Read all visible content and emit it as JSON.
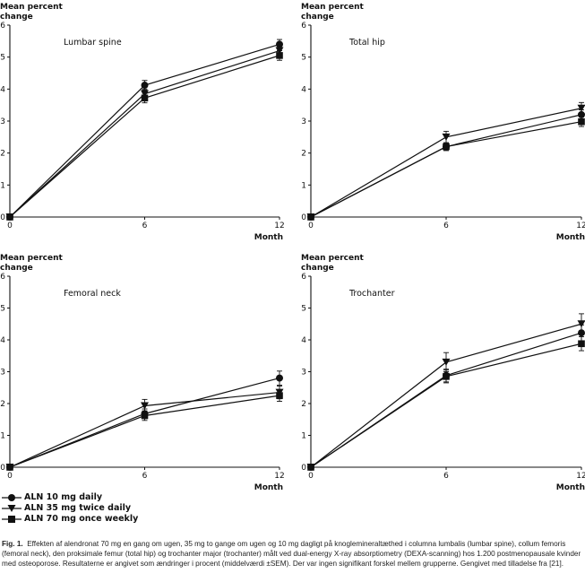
{
  "figure": {
    "caption_label": "Fig. 1.",
    "caption_text": "Effekten af alendronat 70 mg en gang om ugen, 35 mg to gange om ugen og 10 mg dagligt på knoglemineraltæthed i columna lumbalis (lumbar spine), collum femoris (femoral neck), den proksimale femur (total hip) og trochanter major (trochanter) målt ved dual-energy X-ray absorptiometry (DEXA-scanning) hos 1.200 postmenopausale kvinder med osteoporose. Resultaterne er angivet som ændringer i procent (middelværdi ±SEM). Der var ingen signifikant forskel mellem grupperne. Gengivet med tilladelse fra [21]."
  },
  "legend": [
    {
      "label": "ALN 10 mg daily",
      "marker": "circle"
    },
    {
      "label": "ALN 35 mg twice daily",
      "marker": "triangle-down"
    },
    {
      "label": "ALN 70 mg once weekly",
      "marker": "square"
    }
  ],
  "chart_data": [
    {
      "type": "line",
      "title": "Lumbar spine",
      "ylabel": "Mean percent change",
      "xlabel": "Month",
      "x": [
        0,
        6,
        12
      ],
      "xticks": [
        "0",
        "6",
        "12"
      ],
      "yticks": [
        "0",
        "1",
        "2",
        "3",
        "4",
        "5",
        "6"
      ],
      "ylim": [
        0,
        6
      ],
      "xlim": [
        0,
        12
      ],
      "series": [
        {
          "name": "ALN 10 mg daily",
          "marker": "circle",
          "values": [
            0,
            4.12,
            5.4
          ],
          "err": [
            0,
            0.15,
            0.15
          ]
        },
        {
          "name": "ALN 35 mg twice daily",
          "marker": "triangle-down",
          "values": [
            0,
            3.85,
            5.2
          ],
          "err": [
            0,
            0.15,
            0.15
          ]
        },
        {
          "name": "ALN 70 mg once weekly",
          "marker": "square",
          "values": [
            0,
            3.72,
            5.05
          ],
          "err": [
            0,
            0.15,
            0.15
          ]
        }
      ]
    },
    {
      "type": "line",
      "title": "Total hip",
      "ylabel": "Mean percent change",
      "xlabel": "Month",
      "x": [
        0,
        6,
        12
      ],
      "xticks": [
        "0",
        "6",
        "12"
      ],
      "yticks": [
        "0",
        "1",
        "2",
        "3",
        "4",
        "5",
        "6"
      ],
      "ylim": [
        0,
        6
      ],
      "xlim": [
        0,
        12
      ],
      "series": [
        {
          "name": "ALN 10 mg daily",
          "marker": "circle",
          "values": [
            0,
            2.2,
            3.2
          ],
          "err": [
            0,
            0.12,
            0.15
          ]
        },
        {
          "name": "ALN 35 mg twice daily",
          "marker": "triangle-down",
          "values": [
            0,
            2.5,
            3.4
          ],
          "err": [
            0,
            0.18,
            0.18
          ]
        },
        {
          "name": "ALN 70 mg once weekly",
          "marker": "square",
          "values": [
            0,
            2.2,
            2.98
          ],
          "err": [
            0,
            0.12,
            0.15
          ]
        }
      ]
    },
    {
      "type": "line",
      "title": "Femoral neck",
      "ylabel": "Mean percent change",
      "xlabel": "Month",
      "x": [
        0,
        6,
        12
      ],
      "xticks": [
        "0",
        "6",
        "12"
      ],
      "yticks": [
        "0",
        "1",
        "2",
        "3",
        "4",
        "5",
        "6"
      ],
      "ylim": [
        0,
        6
      ],
      "xlim": [
        0,
        12
      ],
      "series": [
        {
          "name": "ALN 10 mg daily",
          "marker": "circle",
          "values": [
            0,
            1.68,
            2.8
          ],
          "err": [
            0,
            0.15,
            0.22
          ]
        },
        {
          "name": "ALN 35 mg twice daily",
          "marker": "triangle-down",
          "values": [
            0,
            1.93,
            2.35
          ],
          "err": [
            0,
            0.2,
            0.2
          ]
        },
        {
          "name": "ALN 70 mg once weekly",
          "marker": "square",
          "values": [
            0,
            1.62,
            2.25
          ],
          "err": [
            0,
            0.15,
            0.18
          ]
        }
      ]
    },
    {
      "type": "line",
      "title": "Trochanter",
      "ylabel": "Mean percent change",
      "xlabel": "Month",
      "x": [
        0,
        6,
        12
      ],
      "xticks": [
        "0",
        "6",
        "12"
      ],
      "yticks": [
        "0",
        "1",
        "2",
        "3",
        "4",
        "5",
        "6"
      ],
      "ylim": [
        0,
        6
      ],
      "xlim": [
        0,
        12
      ],
      "series": [
        {
          "name": "ALN 10 mg daily",
          "marker": "circle",
          "values": [
            0,
            2.88,
            4.22
          ],
          "err": [
            0,
            0.2,
            0.25
          ]
        },
        {
          "name": "ALN 35 mg twice daily",
          "marker": "triangle-down",
          "values": [
            0,
            3.3,
            4.5
          ],
          "err": [
            0,
            0.3,
            0.32
          ]
        },
        {
          "name": "ALN 70 mg once weekly",
          "marker": "square",
          "values": [
            0,
            2.85,
            3.88
          ],
          "err": [
            0,
            0.2,
            0.22
          ]
        }
      ]
    }
  ]
}
